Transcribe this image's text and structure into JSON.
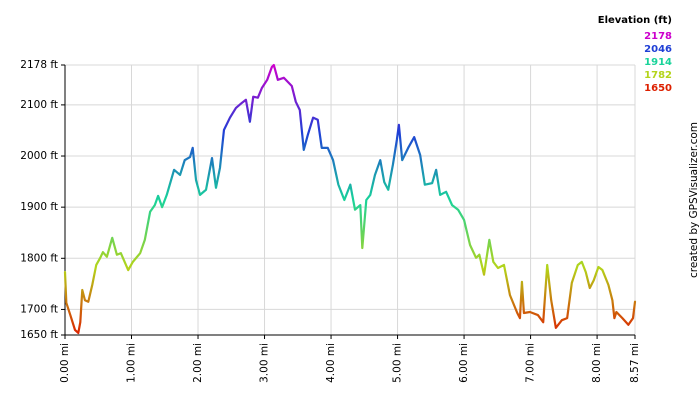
{
  "chart_data": {
    "type": "line",
    "legend_title": "Elevation (ft)",
    "credit": "created by GPSVisualizer.com",
    "color_scale": [
      {
        "value": 2178,
        "color": "#cc00cc"
      },
      {
        "value": 2046,
        "color": "#1f3fd6"
      },
      {
        "value": 1914,
        "color": "#19d39a"
      },
      {
        "value": 1782,
        "color": "#b4d41a"
      },
      {
        "value": 1650,
        "color": "#dd2000"
      }
    ],
    "xlim": [
      0,
      8.57
    ],
    "ylim": [
      1650,
      2178
    ],
    "xticks": [
      {
        "value": 0,
        "label": "0.00 mi"
      },
      {
        "value": 1,
        "label": "1.00 mi"
      },
      {
        "value": 2,
        "label": "2.00 mi"
      },
      {
        "value": 3,
        "label": "3.00 mi"
      },
      {
        "value": 4,
        "label": "4.00 mi"
      },
      {
        "value": 5,
        "label": "5.00 mi"
      },
      {
        "value": 6,
        "label": "6.00 mi"
      },
      {
        "value": 7,
        "label": "7.00 mi"
      },
      {
        "value": 8,
        "label": "8.00 mi"
      },
      {
        "value": 8.57,
        "label": "8.57 mi"
      }
    ],
    "yticks": [
      {
        "value": 1650,
        "label": "1650 ft"
      },
      {
        "value": 1700,
        "label": "1700 ft"
      },
      {
        "value": 1800,
        "label": "1800 ft"
      },
      {
        "value": 1900,
        "label": "1900 ft"
      },
      {
        "value": 2000,
        "label": "2000 ft"
      },
      {
        "value": 2100,
        "label": "2100 ft"
      },
      {
        "value": 2178,
        "label": "2178 ft"
      }
    ],
    "grid": true,
    "x": [
      0,
      0.02,
      0.08,
      0.15,
      0.2,
      0.23,
      0.26,
      0.3,
      0.35,
      0.41,
      0.47,
      0.53,
      0.57,
      0.63,
      0.71,
      0.78,
      0.84,
      0.95,
      1.02,
      1.13,
      1.2,
      1.28,
      1.35,
      1.4,
      1.46,
      1.53,
      1.64,
      1.73,
      1.8,
      1.88,
      1.92,
      1.97,
      2.03,
      2.12,
      2.21,
      2.27,
      2.33,
      2.39,
      2.48,
      2.57,
      2.66,
      2.72,
      2.78,
      2.83,
      2.9,
      2.96,
      3.04,
      3.11,
      3.14,
      3.2,
      3.29,
      3.41,
      3.47,
      3.53,
      3.59,
      3.65,
      3.73,
      3.8,
      3.86,
      3.95,
      4.03,
      4.11,
      4.2,
      4.29,
      4.36,
      4.44,
      4.47,
      4.53,
      4.59,
      4.66,
      4.74,
      4.8,
      4.86,
      4.93,
      4.99,
      5.02,
      5.07,
      5.16,
      5.25,
      5.34,
      5.41,
      5.52,
      5.58,
      5.64,
      5.73,
      5.82,
      5.91,
      6.0,
      6.09,
      6.18,
      6.23,
      6.3,
      6.38,
      6.44,
      6.51,
      6.6,
      6.69,
      6.8,
      6.84,
      6.87,
      6.9,
      6.99,
      7.11,
      7.19,
      7.25,
      7.31,
      7.38,
      7.47,
      7.55,
      7.62,
      7.71,
      7.77,
      7.83,
      7.89,
      7.95,
      8.02,
      8.08,
      8.17,
      8.23,
      8.26,
      8.29,
      8.38,
      8.47,
      8.54,
      8.57
    ],
    "values": [
      1773,
      1713,
      1689,
      1660,
      1654,
      1675,
      1738,
      1718,
      1715,
      1748,
      1787,
      1801,
      1812,
      1803,
      1840,
      1807,
      1810,
      1777,
      1793,
      1810,
      1836,
      1891,
      1904,
      1922,
      1900,
      1924,
      1973,
      1963,
      1992,
      1998,
      2016,
      1953,
      1924,
      1934,
      1996,
      1938,
      1977,
      2051,
      2075,
      2094,
      2104,
      2110,
      2067,
      2116,
      2114,
      2133,
      2149,
      2174,
      2178,
      2149,
      2153,
      2137,
      2106,
      2090,
      2012,
      2041,
      2075,
      2071,
      2016,
      2016,
      1992,
      1944,
      1914,
      1944,
      1895,
      1904,
      1820,
      1914,
      1924,
      1963,
      1992,
      1949,
      1934,
      1983,
      2032,
      2061,
      1992,
      2016,
      2037,
      2002,
      1944,
      1947,
      1973,
      1924,
      1930,
      1904,
      1895,
      1875,
      1826,
      1801,
      1807,
      1768,
      1836,
      1793,
      1781,
      1787,
      1728,
      1693,
      1683,
      1754,
      1693,
      1695,
      1689,
      1675,
      1787,
      1718,
      1664,
      1679,
      1683,
      1752,
      1787,
      1793,
      1773,
      1742,
      1757,
      1783,
      1777,
      1748,
      1718,
      1683,
      1695,
      1683,
      1670,
      1683,
      1715
    ]
  }
}
